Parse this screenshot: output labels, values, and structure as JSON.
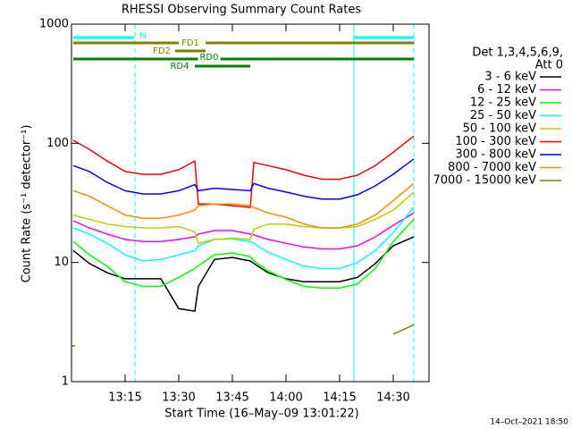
{
  "chart_data": {
    "type": "line",
    "title": "RHESSI Observing Summary Count Rates",
    "xlabel": "Start Time (16–May–09 13:01:22)",
    "ylabel": "Count Rate (s⁻¹ detector⁻¹)",
    "footer": "14–Oct–2021 18:50",
    "legend_title": [
      "Det 1,3,4,5,6,9,",
      "Att 0"
    ],
    "log_y": true,
    "xlim": [
      0,
      100
    ],
    "ylim": [
      1,
      1000
    ],
    "xticks": [
      {
        "value": 15,
        "label": "13:15"
      },
      {
        "value": 30,
        "label": "13:30"
      },
      {
        "value": 45,
        "label": "13:45"
      },
      {
        "value": 60,
        "label": "14:00"
      },
      {
        "value": 75,
        "label": "14:15"
      },
      {
        "value": 90,
        "label": "14:30"
      }
    ],
    "yticks": [
      1,
      10,
      100,
      1000
    ],
    "x": [
      0.5,
      5,
      10,
      15,
      20,
      25,
      30,
      34.5,
      35.5,
      40,
      45,
      50,
      51,
      55,
      60,
      65,
      70,
      75,
      80,
      85,
      90,
      95.75
    ],
    "series": [
      {
        "name": "3 - 6 keV",
        "color": "#000000",
        "values": [
          12.6,
          9.8,
          8.2,
          7.3,
          7.3,
          7.3,
          4.1,
          3.9,
          6.3,
          10.6,
          11,
          10.3,
          9.8,
          8.2,
          7.3,
          6.9,
          6.9,
          6.9,
          7.5,
          9.8,
          13.8,
          16.4
        ]
      },
      {
        "name": "6 - 12 keV",
        "color": "#ff00ff",
        "values": [
          22.4,
          19.5,
          17.3,
          15.6,
          15,
          15,
          15.6,
          16.4,
          17.3,
          18.5,
          18.5,
          17.3,
          17,
          15.6,
          14.5,
          13.5,
          13,
          13,
          13.8,
          16.4,
          20.5,
          26
        ]
      },
      {
        "name": "12 - 25 keV",
        "color": "#00ff00",
        "values": [
          15,
          11.6,
          9.3,
          6.9,
          6.3,
          6.3,
          7.5,
          8.9,
          9.4,
          11.6,
          12,
          11.2,
          10.3,
          8.5,
          7.2,
          6.3,
          6.1,
          6.1,
          6.6,
          8.9,
          15,
          23
        ]
      },
      {
        "name": "25 - 50 keV",
        "color": "#00ffff",
        "values": [
          19.5,
          17.3,
          14.5,
          11.6,
          10.3,
          10.6,
          11.6,
          12.6,
          13.8,
          15.6,
          15.8,
          15,
          14.5,
          12.2,
          10.6,
          9.3,
          8.9,
          8.9,
          10,
          12.6,
          17.8,
          29
        ]
      },
      {
        "name": "50 - 100 keV",
        "color": "#c8c800",
        "values": [
          25,
          23,
          21,
          20,
          19.5,
          19.5,
          20,
          18,
          14.5,
          15.6,
          16,
          15.6,
          19,
          21,
          21,
          20,
          19.5,
          19.5,
          20,
          23,
          27.5,
          39
        ]
      },
      {
        "name": "100 - 300 keV",
        "color": "#ff0000",
        "values": [
          106,
          89,
          71,
          58,
          55,
          55,
          60,
          71,
          31,
          31,
          30,
          29,
          69,
          65,
          60,
          54,
          50,
          50,
          54,
          65,
          84,
          115
        ]
      },
      {
        "name": "300 - 800 keV",
        "color": "#0000ff",
        "values": [
          65,
          58,
          47,
          40,
          37.6,
          37.6,
          40,
          45,
          40,
          42,
          41,
          40,
          46,
          42,
          39,
          36,
          34,
          34,
          37,
          44,
          55,
          74
        ]
      },
      {
        "name": "800 - 7000 keV",
        "color": "#ff8c00",
        "values": [
          40,
          36,
          30,
          25,
          23.5,
          23.5,
          25,
          27.5,
          30,
          31,
          31,
          30,
          29,
          26,
          24,
          21,
          19.5,
          19.5,
          21,
          25,
          33,
          46
        ]
      },
      {
        "name": "7000 - 15000 keV",
        "color": "#808000",
        "values": [
          2,
          null,
          null,
          null,
          null,
          null,
          null,
          null,
          null,
          null,
          null,
          null,
          null,
          null,
          null,
          null,
          null,
          null,
          null,
          null,
          2.5,
          3
        ]
      }
    ],
    "night_lines": [
      {
        "x": 17.75,
        "dashed": true,
        "color": "#00ffff"
      },
      {
        "x": 79,
        "dashed": false,
        "color": "#00ffff"
      },
      {
        "x": 95.75,
        "dashed": true,
        "color": "#00ffff"
      }
    ],
    "flags": [
      {
        "label": "N",
        "color": "#00ffff",
        "segments": [
          [
            0.5,
            17.5
          ],
          [
            79,
            95.75
          ]
        ]
      },
      {
        "label": "FD1",
        "color": "#808000",
        "segments": [
          [
            0.5,
            30
          ],
          [
            37.5,
            95.75
          ]
        ]
      },
      {
        "label": "FD2",
        "color": "#808000",
        "segments": [
          [
            29,
            37.5
          ]
        ]
      },
      {
        "label": "RD0",
        "color": "#008000",
        "segments": [
          [
            0.5,
            95.75
          ]
        ]
      },
      {
        "label": "RD4",
        "color": "#008000",
        "segments": [
          [
            34.5,
            50
          ]
        ]
      }
    ]
  }
}
